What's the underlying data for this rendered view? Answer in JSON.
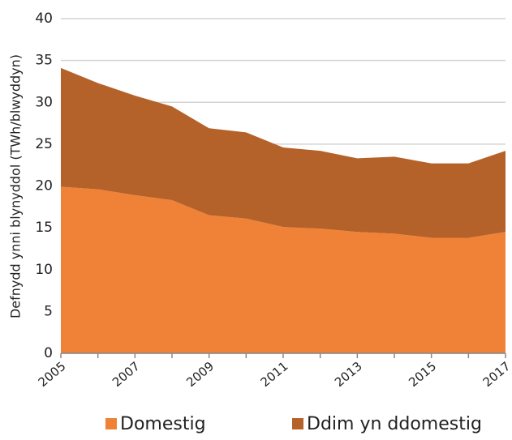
{
  "chart_data": {
    "type": "stacked_area",
    "y_label": "Defnydd ynni blynyddol (TWh/blwyddyn)",
    "x": [
      2005,
      2006,
      2007,
      2008,
      2009,
      2010,
      2011,
      2012,
      2013,
      2014,
      2015,
      2016,
      2017
    ],
    "series": [
      {
        "name": "Domestig",
        "color": "#ef8236",
        "values": [
          19.9,
          19.6,
          18.9,
          18.3,
          16.5,
          16.1,
          15.1,
          14.9,
          14.5,
          14.3,
          13.8,
          13.8,
          14.5
        ]
      },
      {
        "name": "Ddim yn ddomestig",
        "color": "#b5622a",
        "values": [
          14.2,
          12.7,
          11.9,
          11.2,
          10.4,
          10.3,
          9.5,
          9.3,
          8.8,
          9.2,
          8.9,
          8.9,
          9.7
        ]
      }
    ],
    "xlim": [
      2005,
      2017
    ],
    "xticks": [
      2005,
      2007,
      2009,
      2011,
      2013,
      2015,
      2017
    ],
    "ylim": [
      0,
      40
    ],
    "yticks": [
      0,
      5,
      10,
      15,
      20,
      25,
      30,
      35,
      40
    ],
    "grid": true,
    "legend": "bottom"
  }
}
